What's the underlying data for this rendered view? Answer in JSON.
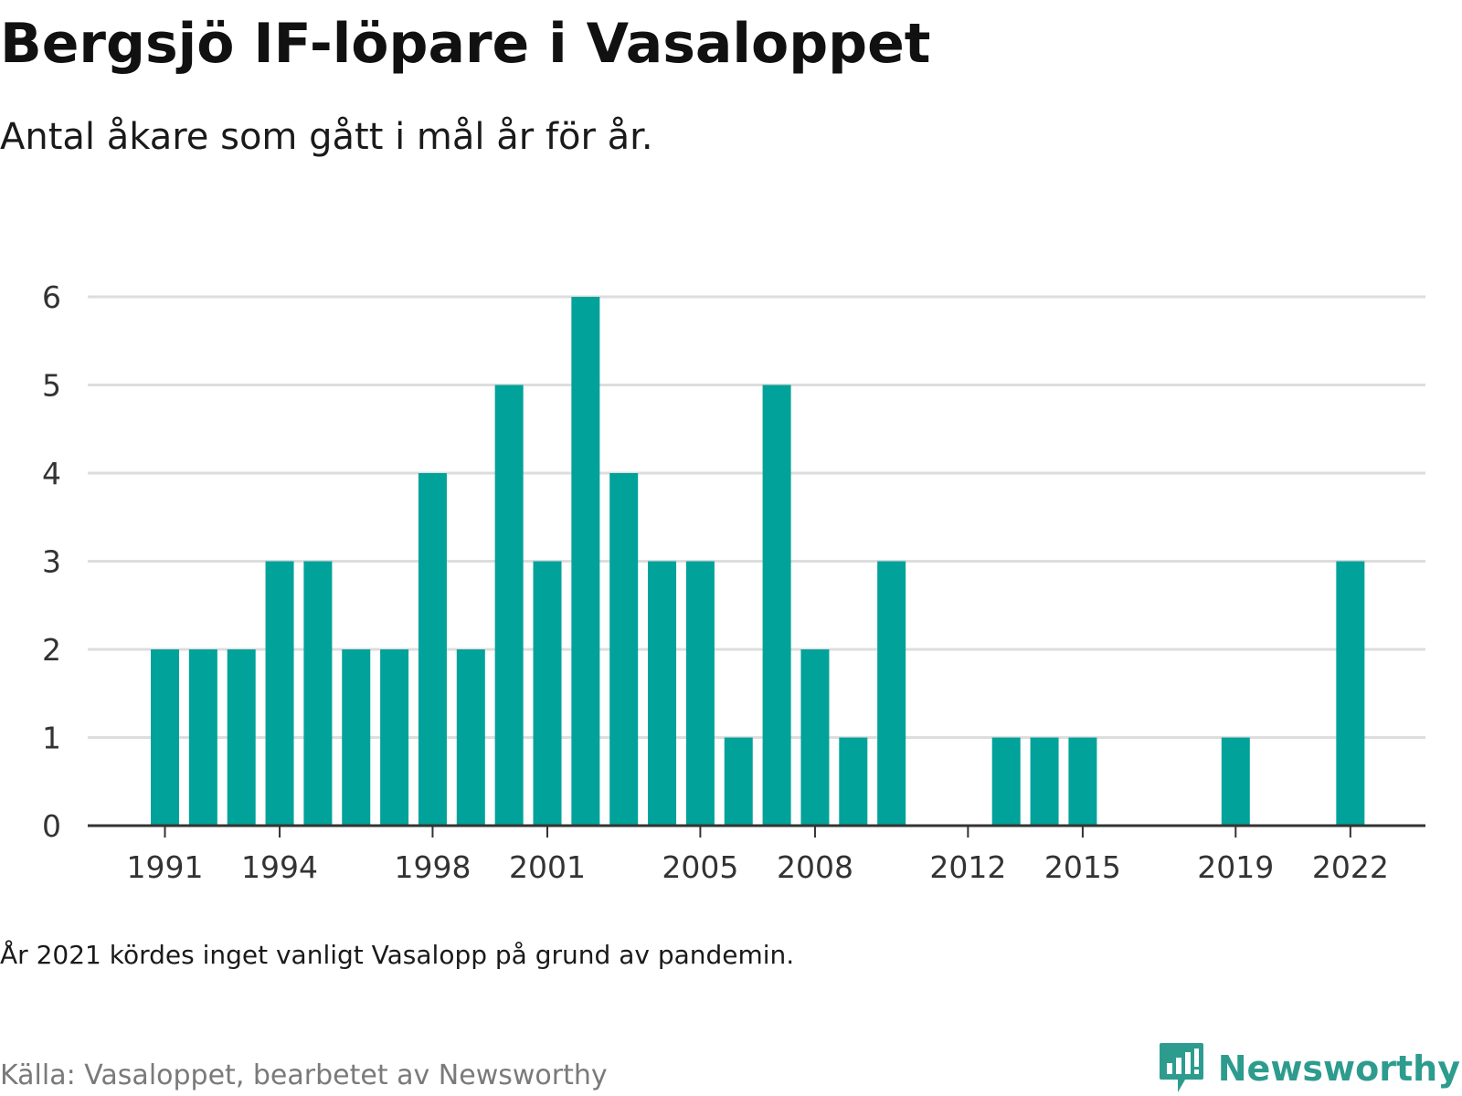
{
  "title": "Bergsjö IF-löpare i Vasaloppet",
  "subtitle": "Antal åkare som gått i mål år för år.",
  "note": "År 2021 kördes inget vanligt Vasalopp på grund av pandemin.",
  "source": "Källa: Vasaloppet, bearbetet av Newsworthy",
  "brand": {
    "name": "Newsworthy",
    "icon": "newsworthy-logo-icon",
    "color": "#2d9c8f"
  },
  "chart_data": {
    "type": "bar",
    "categories": [
      1991,
      1992,
      1993,
      1994,
      1995,
      1996,
      1997,
      1998,
      1999,
      2000,
      2001,
      2002,
      2003,
      2004,
      2005,
      2006,
      2007,
      2008,
      2009,
      2010,
      2011,
      2012,
      2013,
      2014,
      2015,
      2016,
      2017,
      2018,
      2019,
      2020,
      2021,
      2022
    ],
    "values": [
      2,
      2,
      2,
      3,
      3,
      2,
      2,
      4,
      2,
      5,
      3,
      6,
      4,
      3,
      3,
      1,
      5,
      2,
      1,
      3,
      0,
      0,
      1,
      1,
      1,
      0,
      0,
      0,
      1,
      0,
      0,
      3
    ],
    "x_tick_labels": [
      1991,
      1994,
      1998,
      2001,
      2005,
      2008,
      2012,
      2015,
      2019,
      2022
    ],
    "y_ticks": [
      0,
      1,
      2,
      3,
      4,
      5,
      6
    ],
    "ylim": [
      0,
      6
    ],
    "xlabel": "",
    "ylabel": "",
    "grid": true,
    "bar_color": "#00a29a",
    "grid_color": "#dddddd",
    "axis_color": "#333333",
    "tick_label_color": "#333333"
  }
}
